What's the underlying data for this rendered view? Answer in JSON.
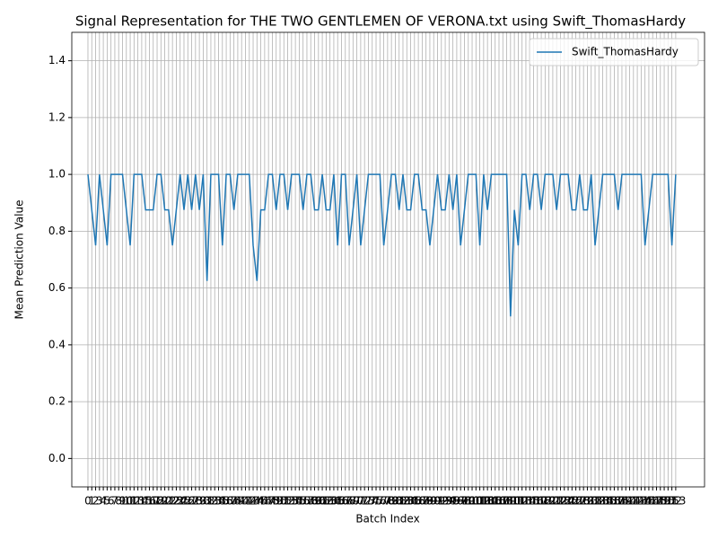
{
  "chart_data": {
    "type": "line",
    "title": "Signal Representation for THE TWO GENTLEMEN OF VERONA.txt using Swift_ThomasHardy",
    "x_label": "Batch Index",
    "y_label": "Mean Prediction Value",
    "x": [
      0,
      1,
      2,
      3,
      4,
      5,
      6,
      7,
      8,
      9,
      10,
      11,
      12,
      13,
      14,
      15,
      16,
      17,
      18,
      19,
      20,
      21,
      22,
      23,
      24,
      25,
      26,
      27,
      28,
      29,
      30,
      31,
      32,
      33,
      34,
      35,
      36,
      37,
      38,
      39,
      40,
      41,
      42,
      43,
      44,
      45,
      46,
      47,
      48,
      49,
      50,
      51,
      52,
      53,
      54,
      55,
      56,
      57,
      58,
      59,
      60,
      61,
      62,
      63,
      64,
      65,
      66,
      67,
      68,
      69,
      70,
      71,
      72,
      73,
      74,
      75,
      76,
      77,
      78,
      79,
      80,
      81,
      82,
      83,
      84,
      85,
      86,
      87,
      88,
      89,
      90,
      91,
      92,
      93,
      94,
      95,
      96,
      97,
      98,
      99,
      100,
      101,
      102,
      103,
      104,
      105,
      106,
      107,
      108,
      109,
      110,
      111,
      112,
      113,
      114,
      115,
      116,
      117,
      118,
      119,
      120,
      121,
      122,
      123,
      124,
      125,
      126,
      127,
      128,
      129,
      130,
      131,
      132,
      133,
      134,
      135,
      136,
      137,
      138,
      139,
      140,
      141,
      142,
      143,
      144,
      145,
      146,
      147,
      148,
      149,
      150,
      151,
      152,
      153
    ],
    "series": [
      {
        "name": "Swift_ThomasHardy",
        "color": "#1f77b4",
        "values": [
          1,
          0.875,
          0.75,
          1,
          0.875,
          0.75,
          1,
          1,
          1,
          1,
          0.875,
          0.75,
          1,
          1,
          1,
          0.875,
          0.875,
          0.875,
          1,
          1,
          0.875,
          0.875,
          0.75,
          0.875,
          1,
          0.875,
          1,
          0.875,
          1,
          0.875,
          1,
          0.625,
          1,
          1,
          1,
          0.75,
          1,
          1,
          0.875,
          1,
          1,
          1,
          1,
          0.75,
          0.625,
          0.875,
          0.875,
          1,
          1,
          0.875,
          1,
          1,
          0.875,
          1,
          1,
          1,
          0.875,
          1,
          1,
          0.875,
          0.875,
          1,
          0.875,
          0.875,
          1,
          0.75,
          1,
          1,
          0.75,
          0.875,
          1,
          0.75,
          0.875,
          1,
          1,
          1,
          1,
          0.75,
          0.875,
          1,
          1,
          0.875,
          1,
          0.875,
          0.875,
          1,
          1,
          0.875,
          0.875,
          0.75,
          0.875,
          1,
          0.875,
          0.875,
          1,
          0.875,
          1,
          0.75,
          0.875,
          1,
          1,
          1,
          0.75,
          1,
          0.875,
          1,
          1,
          1,
          1,
          1,
          0.5,
          0.875,
          0.75,
          1,
          1,
          0.875,
          1,
          1,
          0.875,
          1,
          1,
          1,
          0.875,
          1,
          1,
          1,
          0.875,
          0.875,
          1,
          0.875,
          0.875,
          1,
          0.75,
          0.875,
          1,
          1,
          1,
          1,
          0.875,
          1,
          1,
          1,
          1,
          1,
          1,
          0.75,
          0.875,
          1,
          1,
          1,
          1,
          1,
          0.75,
          1
        ]
      }
    ],
    "xlim": [
      -4.2,
      160.5
    ],
    "xticks": [
      0,
      1,
      2,
      3,
      4,
      5,
      6,
      7,
      8,
      9,
      10,
      11,
      12,
      13,
      14,
      15,
      16,
      17,
      18,
      19,
      20,
      21,
      22,
      23,
      24,
      25,
      26,
      27,
      28,
      29,
      30,
      31,
      32,
      33,
      34,
      35,
      36,
      37,
      38,
      39,
      40,
      41,
      42,
      43,
      44,
      45,
      46,
      47,
      48,
      49,
      50,
      51,
      52,
      53,
      54,
      55,
      56,
      57,
      58,
      59,
      60,
      61,
      62,
      63,
      64,
      65,
      66,
      67,
      68,
      69,
      70,
      71,
      72,
      73,
      74,
      75,
      76,
      77,
      78,
      79,
      80,
      81,
      82,
      83,
      84,
      85,
      86,
      87,
      88,
      89,
      90,
      91,
      92,
      93,
      94,
      95,
      96,
      97,
      98,
      99,
      100,
      101,
      102,
      103,
      104,
      105,
      106,
      107,
      108,
      109,
      110,
      111,
      112,
      113,
      114,
      115,
      116,
      117,
      118,
      119,
      120,
      121,
      122,
      123,
      124,
      125,
      126,
      127,
      128,
      129,
      130,
      131,
      132,
      133,
      134,
      135,
      136,
      137,
      138,
      139,
      140,
      141,
      142,
      143,
      144,
      145,
      146,
      147,
      148,
      149,
      150,
      151,
      152,
      153
    ],
    "ylim": [
      -0.1,
      1.5
    ],
    "yticks": [
      {
        "value": 0,
        "label": "0.0"
      },
      {
        "value": 0.2,
        "label": "0.2"
      },
      {
        "value": 0.4,
        "label": "0.4"
      },
      {
        "value": 0.6,
        "label": "0.6"
      },
      {
        "value": 0.8,
        "label": "0.8"
      },
      {
        "value": 1,
        "label": "1.0"
      },
      {
        "value": 1.2,
        "label": "1.2"
      },
      {
        "value": 1.4,
        "label": "1.4"
      }
    ],
    "grid": true,
    "legend": "upper right"
  }
}
